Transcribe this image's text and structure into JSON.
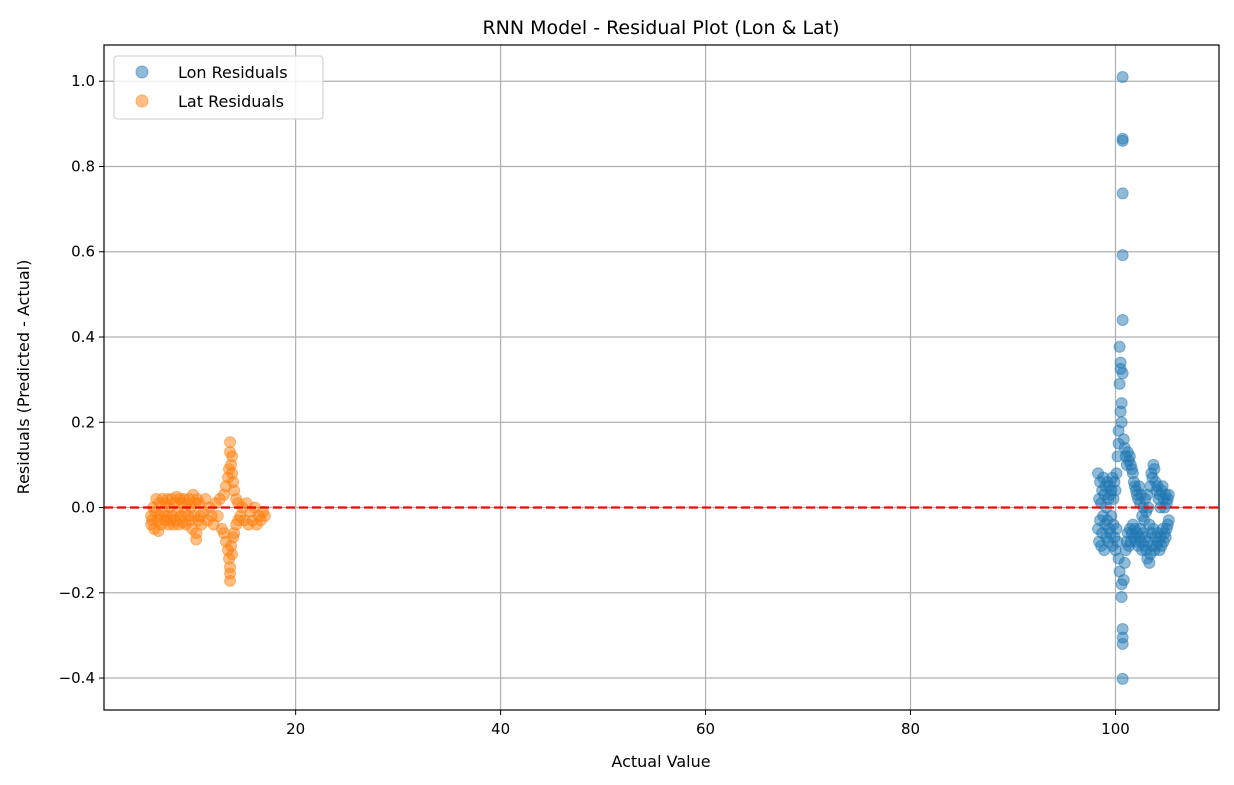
{
  "chart_data": {
    "type": "scatter",
    "title": "RNN Model - Residual Plot (Lon & Lat)",
    "xlabel": "Actual Value",
    "ylabel": "Residuals (Predicted - Actual)",
    "xlim": [
      1.3,
      110.1
    ],
    "ylim": [
      -0.475,
      1.085
    ],
    "xticks": [
      20,
      40,
      60,
      80,
      100
    ],
    "xtick_labels": [
      "20",
      "40",
      "60",
      "80",
      "100"
    ],
    "yticks": [
      -0.4,
      -0.2,
      0.0,
      0.2,
      0.4,
      0.6,
      0.8,
      1.0
    ],
    "ytick_labels": [
      "−0.4",
      "−0.2",
      "0.0",
      "0.2",
      "0.4",
      "0.6",
      "0.8",
      "1.0"
    ],
    "grid": true,
    "legend_position": "upper-left",
    "reference_line": {
      "y": 0.0,
      "style": "dashed",
      "color": "#ff0000"
    },
    "series": [
      {
        "name": "Lon Residuals",
        "color": "#1f77b4",
        "points": [
          [
            98.3,
            0.08
          ],
          [
            98.3,
            -0.05
          ],
          [
            98.4,
            0.02
          ],
          [
            98.4,
            -0.08
          ],
          [
            98.5,
            0.06
          ],
          [
            98.5,
            -0.03
          ],
          [
            98.6,
            0.01
          ],
          [
            98.6,
            -0.09
          ],
          [
            98.7,
            0.04
          ],
          [
            98.7,
            -0.06
          ],
          [
            98.8,
            0.07
          ],
          [
            98.8,
            -0.02
          ],
          [
            98.9,
            0.03
          ],
          [
            98.9,
            -0.1
          ],
          [
            99.0,
            0.05
          ],
          [
            99.0,
            -0.04
          ],
          [
            99.1,
            0.0
          ],
          [
            99.1,
            -0.07
          ],
          [
            99.2,
            0.06
          ],
          [
            99.2,
            -0.03
          ],
          [
            99.3,
            0.02
          ],
          [
            99.3,
            -0.08
          ],
          [
            99.4,
            0.05
          ],
          [
            99.4,
            -0.05
          ],
          [
            99.5,
            0.03
          ],
          [
            99.5,
            -0.06
          ],
          [
            99.6,
            0.04
          ],
          [
            99.6,
            -0.02
          ],
          [
            99.7,
            0.07
          ],
          [
            99.7,
            -0.09
          ],
          [
            99.8,
            0.02
          ],
          [
            99.8,
            -0.04
          ],
          [
            99.9,
            0.06
          ],
          [
            99.9,
            -0.07
          ],
          [
            100.0,
            0.04
          ],
          [
            100.0,
            -0.1
          ],
          [
            100.1,
            0.08
          ],
          [
            100.1,
            -0.05
          ],
          [
            100.2,
            0.12
          ],
          [
            100.2,
            -0.08
          ],
          [
            100.3,
            0.15
          ],
          [
            100.3,
            -0.12
          ],
          [
            100.3,
            0.18
          ],
          [
            100.4,
            -0.15
          ],
          [
            100.4,
            0.377
          ],
          [
            100.4,
            0.29
          ],
          [
            100.5,
            0.34
          ],
          [
            100.5,
            0.325
          ],
          [
            100.5,
            0.225
          ],
          [
            100.6,
            0.245
          ],
          [
            100.6,
            0.2
          ],
          [
            100.6,
            -0.21
          ],
          [
            100.6,
            -0.18
          ],
          [
            100.7,
            1.01
          ],
          [
            100.7,
            0.865
          ],
          [
            100.7,
            0.86
          ],
          [
            100.7,
            0.737
          ],
          [
            100.7,
            0.592
          ],
          [
            100.7,
            0.44
          ],
          [
            100.7,
            0.315
          ],
          [
            100.7,
            -0.285
          ],
          [
            100.7,
            -0.305
          ],
          [
            100.7,
            -0.32
          ],
          [
            100.7,
            -0.402
          ],
          [
            100.8,
            0.16
          ],
          [
            100.8,
            -0.17
          ],
          [
            100.9,
            0.14
          ],
          [
            100.9,
            -0.13
          ],
          [
            101.0,
            0.12
          ],
          [
            101.0,
            -0.1
          ],
          [
            101.1,
            0.1
          ],
          [
            101.1,
            -0.08
          ],
          [
            101.2,
            0.13
          ],
          [
            101.2,
            -0.06
          ],
          [
            101.3,
            0.11
          ],
          [
            101.3,
            -0.09
          ],
          [
            101.4,
            0.12
          ],
          [
            101.4,
            -0.05
          ],
          [
            101.5,
            0.1
          ],
          [
            101.5,
            -0.08
          ],
          [
            101.6,
            0.09
          ],
          [
            101.6,
            -0.06
          ],
          [
            101.7,
            0.08
          ],
          [
            101.7,
            -0.04
          ],
          [
            101.8,
            0.06
          ],
          [
            101.8,
            -0.07
          ],
          [
            101.9,
            0.05
          ],
          [
            101.9,
            -0.05
          ],
          [
            102.0,
            0.04
          ],
          [
            102.0,
            -0.08
          ],
          [
            102.1,
            0.03
          ],
          [
            102.1,
            -0.06
          ],
          [
            102.2,
            0.02
          ],
          [
            102.2,
            -0.09
          ],
          [
            102.3,
            0.05
          ],
          [
            102.3,
            -0.07
          ],
          [
            102.4,
            0.01
          ],
          [
            102.4,
            -0.05
          ],
          [
            102.5,
            0.03
          ],
          [
            102.5,
            -0.08
          ],
          [
            102.6,
            -0.02
          ],
          [
            102.6,
            -0.1
          ],
          [
            102.7,
            0.0
          ],
          [
            102.7,
            -0.06
          ],
          [
            102.8,
            -0.03
          ],
          [
            102.8,
            -0.09
          ],
          [
            102.9,
            0.02
          ],
          [
            102.9,
            -0.07
          ],
          [
            103.0,
            -0.01
          ],
          [
            103.0,
            -0.1
          ],
          [
            103.1,
            0.03
          ],
          [
            103.1,
            -0.12
          ],
          [
            103.2,
            0.0
          ],
          [
            103.2,
            -0.08
          ],
          [
            103.3,
            -0.04
          ],
          [
            103.3,
            -0.13
          ],
          [
            103.4,
            0.05
          ],
          [
            103.4,
            -0.11
          ],
          [
            103.5,
            0.08
          ],
          [
            103.5,
            -0.06
          ],
          [
            103.6,
            0.07
          ],
          [
            103.6,
            -0.09
          ],
          [
            103.7,
            0.1
          ],
          [
            103.7,
            -0.05
          ],
          [
            103.8,
            0.09
          ],
          [
            103.8,
            -0.1
          ],
          [
            103.9,
            0.06
          ],
          [
            103.9,
            -0.07
          ],
          [
            104.0,
            0.04
          ],
          [
            104.0,
            -0.09
          ],
          [
            104.1,
            0.05
          ],
          [
            104.1,
            -0.06
          ],
          [
            104.2,
            0.02
          ],
          [
            104.2,
            -0.08
          ],
          [
            104.3,
            0.03
          ],
          [
            104.3,
            -0.1
          ],
          [
            104.4,
            0.0
          ],
          [
            104.4,
            -0.07
          ],
          [
            104.5,
            0.04
          ],
          [
            104.5,
            -0.09
          ],
          [
            104.6,
            0.05
          ],
          [
            104.6,
            -0.05
          ],
          [
            104.7,
            0.02
          ],
          [
            104.7,
            -0.08
          ],
          [
            104.8,
            0.0
          ],
          [
            104.8,
            -0.06
          ],
          [
            104.9,
            0.03
          ],
          [
            104.9,
            -0.07
          ],
          [
            105.0,
            0.01
          ],
          [
            105.0,
            -0.05
          ],
          [
            105.1,
            0.02
          ],
          [
            105.1,
            -0.04
          ],
          [
            105.2,
            0.03
          ],
          [
            105.2,
            -0.03
          ]
        ]
      },
      {
        "name": "Lat Residuals",
        "color": "#ff7f0e",
        "points": [
          [
            5.9,
            -0.04
          ],
          [
            5.9,
            -0.02
          ],
          [
            6.0,
            -0.03
          ],
          [
            6.1,
            0.0
          ],
          [
            6.2,
            -0.05
          ],
          [
            6.3,
            -0.01
          ],
          [
            6.4,
            0.02
          ],
          [
            6.5,
            -0.03
          ],
          [
            6.6,
            -0.055
          ],
          [
            6.7,
            0.01
          ],
          [
            6.8,
            -0.02
          ],
          [
            6.9,
            -0.04
          ],
          [
            7.0,
            0.02
          ],
          [
            7.1,
            -0.01
          ],
          [
            7.2,
            -0.03
          ],
          [
            7.3,
            0.01
          ],
          [
            7.4,
            -0.02
          ],
          [
            7.5,
            0.02
          ],
          [
            7.6,
            -0.04
          ],
          [
            7.7,
            0.0
          ],
          [
            7.8,
            -0.03
          ],
          [
            7.9,
            0.02
          ],
          [
            8.0,
            -0.02
          ],
          [
            8.1,
            -0.04
          ],
          [
            8.2,
            0.01
          ],
          [
            8.3,
            -0.03
          ],
          [
            8.4,
            0.025
          ],
          [
            8.5,
            -0.01
          ],
          [
            8.6,
            -0.04
          ],
          [
            8.7,
            0.02
          ],
          [
            8.8,
            -0.02
          ],
          [
            8.9,
            0.01
          ],
          [
            9.0,
            -0.035
          ],
          [
            9.1,
            0.02
          ],
          [
            9.2,
            -0.01
          ],
          [
            9.3,
            -0.04
          ],
          [
            9.4,
            0.01
          ],
          [
            9.5,
            -0.02
          ],
          [
            9.6,
            0.02
          ],
          [
            9.7,
            -0.03
          ],
          [
            9.8,
            0.0
          ],
          [
            9.9,
            -0.05
          ],
          [
            10.0,
            0.03
          ],
          [
            10.1,
            -0.02
          ],
          [
            10.2,
            0.01
          ],
          [
            10.3,
            -0.06
          ],
          [
            10.3,
            -0.075
          ],
          [
            10.4,
            0.02
          ],
          [
            10.5,
            -0.03
          ],
          [
            10.6,
            0.01
          ],
          [
            10.7,
            -0.02
          ],
          [
            10.8,
            -0.04
          ],
          [
            11.0,
            -0.01
          ],
          [
            11.2,
            0.02
          ],
          [
            11.4,
            -0.03
          ],
          [
            11.6,
            0.0
          ],
          [
            11.8,
            -0.02
          ],
          [
            12.0,
            -0.04
          ],
          [
            12.2,
            0.01
          ],
          [
            12.4,
            -0.02
          ],
          [
            12.6,
            0.02
          ],
          [
            12.8,
            -0.05
          ],
          [
            13.0,
            0.03
          ],
          [
            13.0,
            -0.06
          ],
          [
            13.2,
            0.05
          ],
          [
            13.2,
            -0.08
          ],
          [
            13.4,
            0.07
          ],
          [
            13.4,
            -0.1
          ],
          [
            13.5,
            0.09
          ],
          [
            13.5,
            -0.12
          ],
          [
            13.6,
            0.153
          ],
          [
            13.6,
            0.13
          ],
          [
            13.6,
            -0.14
          ],
          [
            13.6,
            -0.155
          ],
          [
            13.6,
            -0.172
          ],
          [
            13.7,
            0.1
          ],
          [
            13.7,
            -0.09
          ],
          [
            13.8,
            0.08
          ],
          [
            13.8,
            0.12
          ],
          [
            13.8,
            -0.11
          ],
          [
            13.9,
            0.06
          ],
          [
            13.9,
            -0.07
          ],
          [
            14.0,
            0.04
          ],
          [
            14.0,
            -0.06
          ],
          [
            14.2,
            0.02
          ],
          [
            14.2,
            -0.04
          ],
          [
            14.4,
            0.01
          ],
          [
            14.4,
            -0.03
          ],
          [
            14.6,
            -0.02
          ],
          [
            14.8,
            0.0
          ],
          [
            15.0,
            -0.03
          ],
          [
            15.2,
            0.01
          ],
          [
            15.4,
            -0.04
          ],
          [
            15.6,
            -0.01
          ],
          [
            15.8,
            -0.03
          ],
          [
            16.0,
            0.0
          ],
          [
            16.2,
            -0.04
          ],
          [
            16.4,
            -0.02
          ],
          [
            16.6,
            -0.03
          ],
          [
            16.8,
            -0.01
          ],
          [
            17.0,
            -0.02
          ]
        ]
      }
    ]
  }
}
